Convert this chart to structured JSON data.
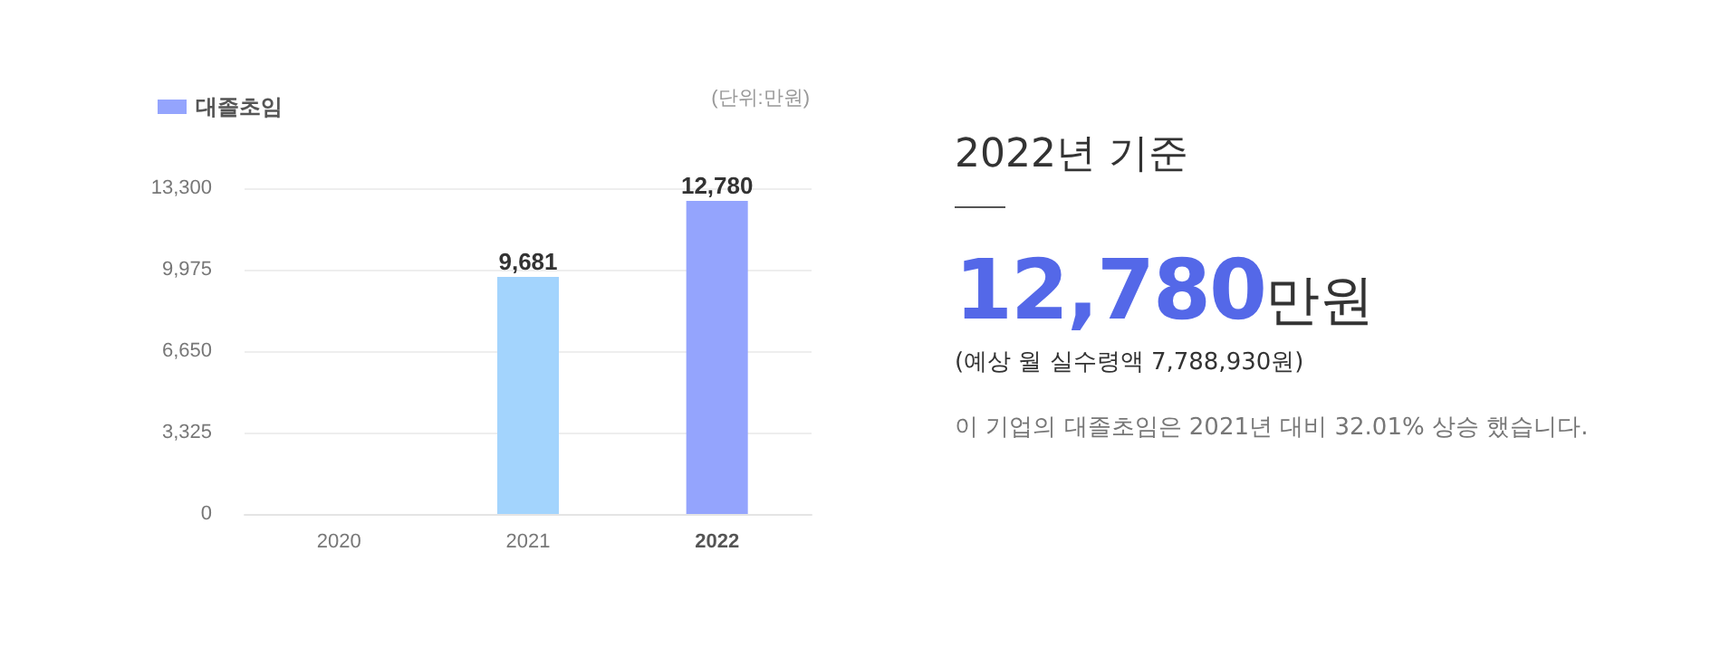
{
  "chart_data": [
    {
      "type": "bar",
      "categories": [
        "2020",
        "2021",
        "2022"
      ],
      "series": [
        {
          "name": "대졸초임",
          "color": "#94a4fd",
          "colors": [
            "#a3d4fd",
            "#a3d4fd",
            "#94a4fd"
          ],
          "values": [
            null,
            9681,
            12780
          ],
          "value_labels": [
            null,
            "9,681",
            "12,780"
          ]
        }
      ],
      "ylim": [
        0,
        13300
      ],
      "yticks": [
        0,
        {
          "value": 3325,
          "label": "3,325"
        },
        {
          "value": 6650,
          "label": "6,650"
        },
        {
          "value": 9975,
          "label": "9,975"
        },
        {
          "value": 13300,
          "label": "13,300"
        }
      ],
      "grid": "y",
      "legend": "top left",
      "annotations": [
        "(단위:만원)"
      ]
    },
    {
      "type": "other",
      "title": "2022년 기준",
      "annotations": [
        "12,780",
        "만원",
        "(예상 월 실수령액 7,788,930원)",
        "이 기업의 대졸초임은 2021년 대비 32.01% 상승 했습니다."
      ]
    }
  ]
}
